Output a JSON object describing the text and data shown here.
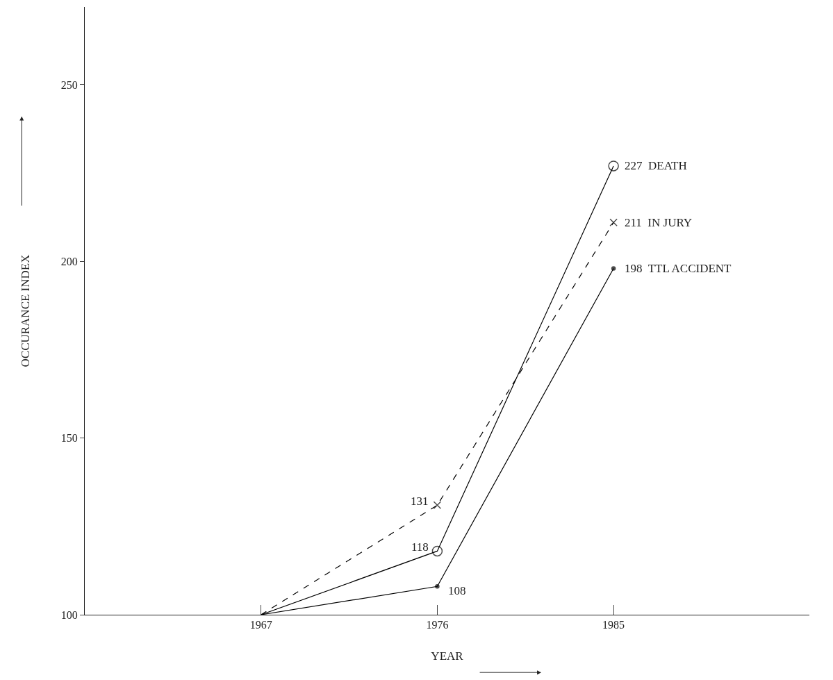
{
  "chart_data": {
    "type": "line",
    "xlabel": "YEAR",
    "ylabel": "OCCURANCE INDEX",
    "x": [
      1967,
      1976,
      1985
    ],
    "xlim": [
      1958,
      1995
    ],
    "xticks": [
      1967,
      1976,
      1985
    ],
    "ylim": [
      100,
      272
    ],
    "yticks": [
      100,
      150,
      200,
      250
    ],
    "grid": false,
    "legend": false,
    "series": [
      {
        "name": "DEATH",
        "color": "#000000",
        "values": [
          100,
          118,
          227
        ],
        "value_labels": [
          null,
          "118",
          "227"
        ],
        "marker": "circle",
        "line_style": "solid"
      },
      {
        "name": "IN JURY",
        "color": "#000000",
        "values": [
          100,
          131,
          211
        ],
        "value_labels": [
          null,
          "131",
          "211"
        ],
        "marker": "cross",
        "line_style": "dashed"
      },
      {
        "name": "TTL ACCIDENT",
        "color": "#000000",
        "values": [
          100,
          108,
          198
        ],
        "value_labels": [
          null,
          "108",
          "198"
        ],
        "marker": "circle",
        "line_style": "solid"
      }
    ]
  }
}
